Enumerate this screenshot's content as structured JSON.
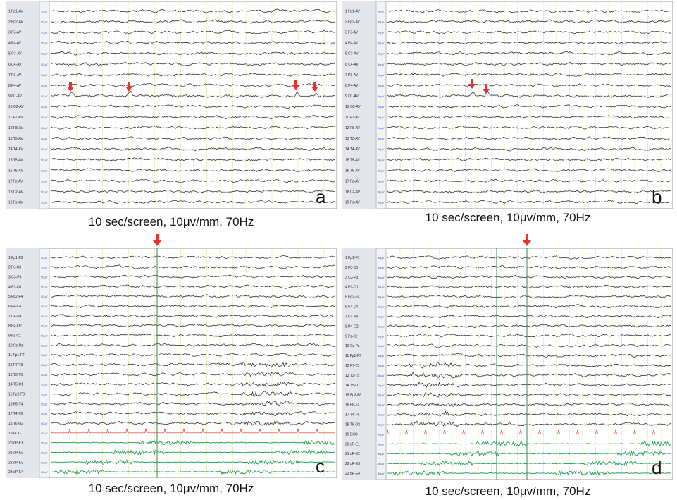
{
  "panels": [
    {
      "letter": "a",
      "caption": "10 sec/screen,  10μv/mm,  70Hz",
      "channels": [
        "1 Fp1-AV",
        "2 Fp2-AV",
        "3 F3-AV",
        "4 F4-AV",
        "5 C3-AV",
        "6 C4-AV",
        "7 P3-AV",
        "8 P4-AV",
        "9 O1-AV",
        "10 O2-AV",
        "11 F7-AV",
        "12 F8-AV",
        "13 T3-AV",
        "14 T4-AV",
        "15 T5-AV",
        "16 T6-AV",
        "17 Fz-AV",
        "18 Cz-AV",
        "19 Pz-AV"
      ]
    },
    {
      "letter": "b",
      "caption": "10 sec/screen,  10μv/mm,  70Hz",
      "channels": [
        "1 Fp1-AV",
        "2 Fp2-AV",
        "3 F3-AV",
        "4 F4-AV",
        "5 C3-AV",
        "6 C4-AV",
        "7 P3-AV",
        "8 P4-AV",
        "9 O1-AV",
        "10 O2-AV",
        "11 F7-AV",
        "12 F8-AV",
        "13 T3-AV",
        "14 T4-AV",
        "15 T5-AV",
        "16 T6-AV",
        "17 Fz-AV",
        "18 Cz-AV",
        "19 Pz-AV"
      ]
    },
    {
      "letter": "c",
      "caption": "10 sec/screen,  10μv/mm,  70Hz",
      "channels": [
        "1 Fp1-F3",
        "2 F3-C3",
        "3 C3-P3",
        "4 P3-O1",
        "5 Fp2-F4",
        "6 F4-C4",
        "7 C4-P4",
        "8 P4-O2",
        "9 Fz-Cz",
        "10 Cz-Pz",
        "11 Fp1-F7",
        "12 F7-T3",
        "13 T3-T5",
        "14 T5-O1",
        "15 Fp2-F8",
        "16 F8-T4",
        "17 T4-T6",
        "18 T6-O2",
        "19 ECG",
        "20 dP-E1",
        "21 dP-E2",
        "22 dP-E3",
        "23 dP-E4"
      ]
    },
    {
      "letter": "d",
      "caption": "10 sec/screen,  10μv/mm,  70Hz",
      "channels": [
        "1 Fp1-F3",
        "2 F3-C3",
        "3 C3-P3",
        "4 P3-O1",
        "5 Fp2-F4",
        "6 F4-C4",
        "7 C4-P4",
        "8 P4-O2",
        "9 Fz-Cz",
        "10 Cz-Pz",
        "11 Fp1-F7",
        "12 F7-T3",
        "13 T3-T5",
        "14 T5-O1",
        "15 Fp2-F8",
        "16 F8-T4",
        "17 T4-T6",
        "18 T6-O2",
        "19 ECG",
        "20 dP-E1",
        "21 dP-E2",
        "22 dP-E3",
        "23 dP-E4"
      ]
    }
  ]
}
